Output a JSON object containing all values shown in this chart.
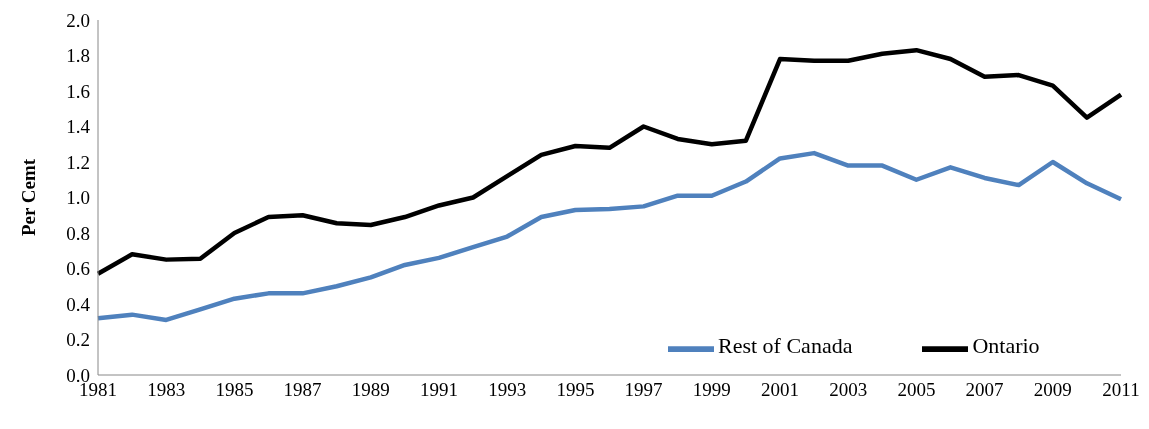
{
  "chart_data": {
    "type": "line",
    "ylabel": "Per Cemt",
    "categories": [
      "1981",
      null,
      "1983",
      null,
      "1985",
      null,
      "1987",
      null,
      "1989",
      null,
      "1991",
      null,
      "1993",
      null,
      "1995",
      null,
      "1997",
      null,
      "1999",
      null,
      "2001",
      null,
      "2003",
      null,
      "2005",
      null,
      "2007",
      null,
      "2009",
      null,
      "2011"
    ],
    "series": [
      {
        "name": "Rest of Canada",
        "color": "#4f81bd",
        "values": [
          0.32,
          0.34,
          0.31,
          0.37,
          0.43,
          0.46,
          0.46,
          0.5,
          0.55,
          0.62,
          0.66,
          0.72,
          0.78,
          0.89,
          0.93,
          0.935,
          0.95,
          1.01,
          1.01,
          1.09,
          1.22,
          1.25,
          1.18,
          1.18,
          1.1,
          1.17,
          1.11,
          1.07,
          1.2,
          1.08,
          0.99
        ]
      },
      {
        "name": "Ontario",
        "color": "#000000",
        "values": [
          0.57,
          0.68,
          0.65,
          0.655,
          0.8,
          0.89,
          0.9,
          0.855,
          0.845,
          0.89,
          0.955,
          1.0,
          1.12,
          1.24,
          1.29,
          1.28,
          1.4,
          1.33,
          1.3,
          1.32,
          1.78,
          1.77,
          1.77,
          1.81,
          1.83,
          1.78,
          1.68,
          1.69,
          1.63,
          1.45,
          1.58
        ]
      }
    ],
    "ylim": [
      0,
      2.0
    ],
    "yticks": [
      {
        "value": 0,
        "label": "0.0"
      },
      {
        "value": 0.2,
        "label": "0.2"
      },
      {
        "value": 0.4,
        "label": "0.4"
      },
      {
        "value": 0.6,
        "label": "0.6"
      },
      {
        "value": 0.8,
        "label": "0.8"
      },
      {
        "value": 1.0,
        "label": "1.0"
      },
      {
        "value": 1.2,
        "label": "1.2"
      },
      {
        "value": 1.4,
        "label": "1.4"
      },
      {
        "value": 1.6,
        "label": "1.6"
      },
      {
        "value": 1.8,
        "label": "1.8"
      },
      {
        "value": 2.0,
        "label": "2.0"
      }
    ],
    "grid": false,
    "legend": "bottom right",
    "marker": "none",
    "line_style": "solid"
  }
}
